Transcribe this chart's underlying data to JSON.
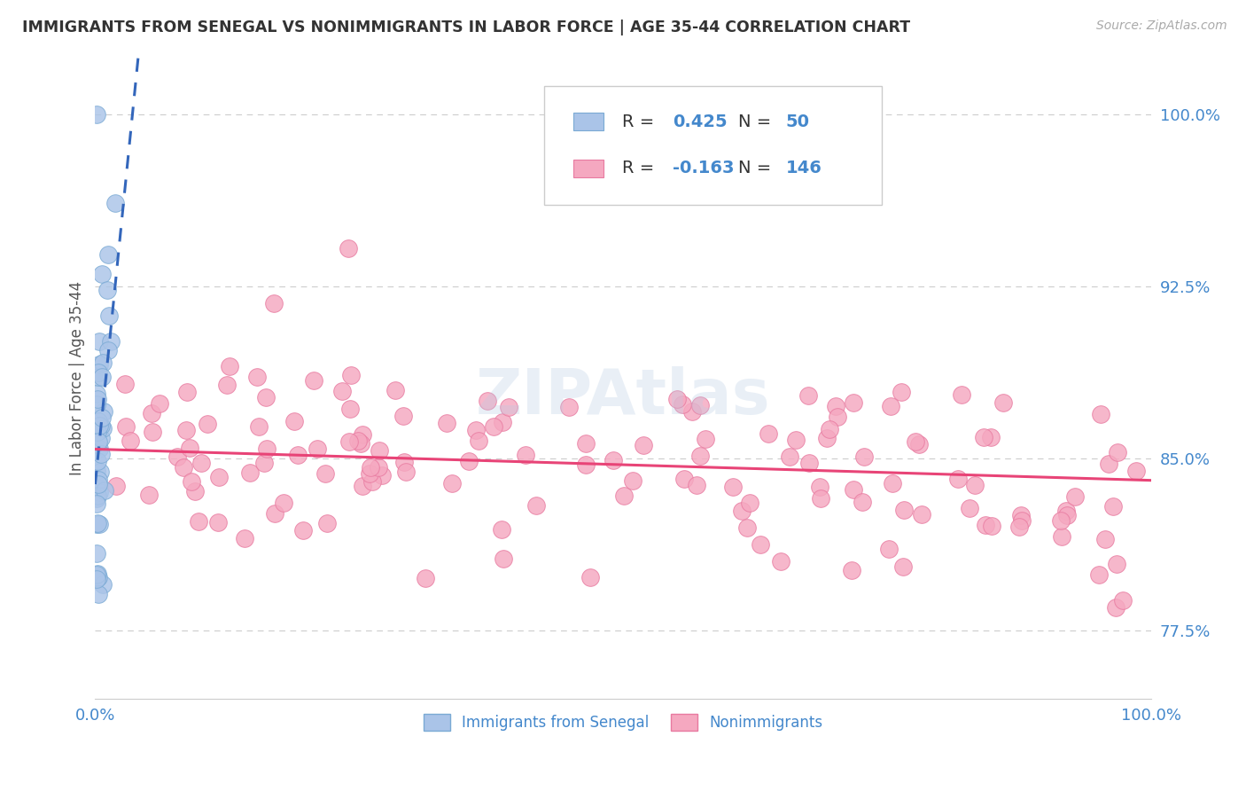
{
  "title": "IMMIGRANTS FROM SENEGAL VS NONIMMIGRANTS IN LABOR FORCE | AGE 35-44 CORRELATION CHART",
  "source_text": "Source: ZipAtlas.com",
  "ylabel": "In Labor Force | Age 35-44",
  "xmin": 0.0,
  "xmax": 1.0,
  "ymin": 0.745,
  "ymax": 1.025,
  "yticks": [
    0.775,
    0.85,
    0.925,
    1.0
  ],
  "ytick_labels": [
    "77.5%",
    "85.0%",
    "92.5%",
    "100.0%"
  ],
  "xtick_labels": [
    "0.0%",
    "100.0%"
  ],
  "xticks": [
    0.0,
    1.0
  ],
  "background_color": "#ffffff",
  "grid_color": "#cccccc",
  "blue_color": "#aac4e8",
  "blue_edge_color": "#7aaad4",
  "pink_color": "#f5a8c0",
  "pink_edge_color": "#e87aa0",
  "blue_line_color": "#3366bb",
  "pink_line_color": "#e84477",
  "legend_label1": "Immigrants from Senegal",
  "legend_label2": "Nonimmigrants",
  "R1": 0.425,
  "N1": 50,
  "R2": -0.163,
  "N2": 146
}
